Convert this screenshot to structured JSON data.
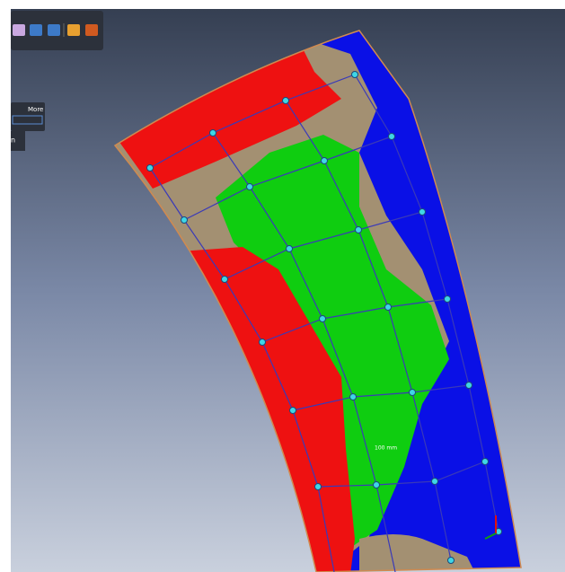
{
  "toolbar": {
    "panel_label": "More",
    "side_label": "n"
  },
  "viewport": {
    "scale_label": "100 mm"
  }
}
